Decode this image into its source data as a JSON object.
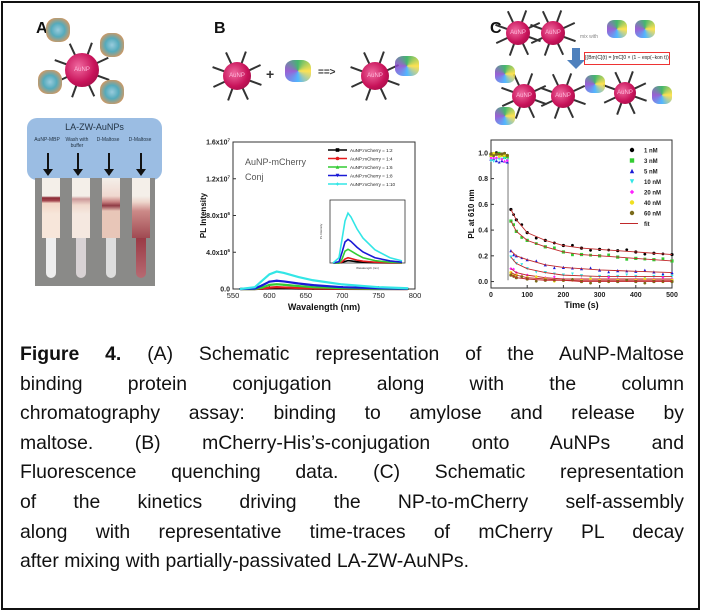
{
  "panels": {
    "a": {
      "letter": "A",
      "np_label": "AuNP",
      "box_title": "LA-ZW-AuNPs",
      "columns": [
        "AuNP-MBP",
        "Wash with buffer",
        "D-Maltose",
        "D-Maltose"
      ]
    },
    "b": {
      "letter": "B",
      "np_label": "AuNP",
      "plus": "+",
      "arrow": "==>",
      "annotation_line1": "AuNP-mCherry",
      "annotation_line2": "Conj"
    },
    "c": {
      "letter": "C",
      "np_label": "AuNP",
      "mix_text": "mix with",
      "formula": "[(Bm)C](t) = [mC]0 × (1 − exp(−kon t))"
    }
  },
  "chart_data": [
    {
      "type": "line",
      "title": "",
      "xlabel": "Wavalength (nm)",
      "ylabel": "PL Intensity",
      "xlim": [
        550,
        800
      ],
      "ylim": [
        0,
        16000000
      ],
      "xticks": [
        "550",
        "600",
        "650",
        "700",
        "750",
        "800"
      ],
      "yticks": [
        "0.0",
        "4.0x10^6",
        "8.0x10^6",
        "1.2x10^7",
        "1.6x10^7"
      ],
      "legend_position": "top-right",
      "x": [
        560,
        580,
        590,
        600,
        610,
        620,
        640,
        660,
        700,
        750,
        790
      ],
      "series": [
        {
          "name": "AuNP:mCherry = 1:2",
          "color": "#000000",
          "marker": "square",
          "values": [
            0,
            0,
            20000,
            60000,
            90000,
            80000,
            50000,
            30000,
            10000,
            0,
            0
          ]
        },
        {
          "name": "AuNP:mCherry = 1:4",
          "color": "#e41a1c",
          "marker": "circle",
          "values": [
            0,
            0,
            40000,
            150000,
            200000,
            170000,
            110000,
            70000,
            30000,
            10000,
            0
          ]
        },
        {
          "name": "AuNP:mCherry = 1:6",
          "color": "#33cc33",
          "marker": "triangle-up",
          "values": [
            0,
            0,
            150000,
            450000,
            520000,
            460000,
            320000,
            200000,
            90000,
            30000,
            10000
          ]
        },
        {
          "name": "AuNP:mCherry = 1:8",
          "color": "#1a1ad6",
          "marker": "triangle-down",
          "values": [
            0,
            50000,
            400000,
            800000,
            900000,
            820000,
            600000,
            420000,
            200000,
            80000,
            30000
          ]
        },
        {
          "name": "AuNP:mCherry = 1:10",
          "color": "#33e6e6",
          "marker": "diamond",
          "values": [
            0,
            200000,
            900000,
            1600000,
            1900000,
            1750000,
            1300000,
            950000,
            500000,
            200000,
            80000
          ]
        }
      ],
      "inset": {
        "xlim": [
          550,
          800
        ],
        "ylim": [
          0,
          2400000
        ]
      }
    },
    {
      "type": "scatter",
      "title": "",
      "xlabel": "Time (s)",
      "ylabel": "PL at 610 nm",
      "xlim": [
        0,
        500
      ],
      "ylim": [
        -0.05,
        1.1
      ],
      "xticks": [
        "0",
        "100",
        "200",
        "300",
        "400",
        "500"
      ],
      "yticks": [
        "0.0",
        "0.2",
        "0.4",
        "0.6",
        "0.8",
        "1.0"
      ],
      "legend_position": "top-right",
      "x": [
        0,
        15,
        30,
        45,
        55,
        70,
        100,
        150,
        200,
        250,
        300,
        350,
        400,
        450,
        500
      ],
      "series": [
        {
          "name": "1 nM",
          "color": "#000000",
          "values": [
            0.99,
            1.0,
            0.99,
            0.98,
            0.56,
            0.48,
            0.38,
            0.32,
            0.28,
            0.26,
            0.25,
            0.24,
            0.23,
            0.22,
            0.21
          ]
        },
        {
          "name": "3 nM",
          "color": "#33cc33",
          "values": [
            0.98,
            0.99,
            0.98,
            0.97,
            0.47,
            0.39,
            0.32,
            0.27,
            0.23,
            0.21,
            0.2,
            0.19,
            0.18,
            0.17,
            0.16
          ]
        },
        {
          "name": "5 nM",
          "color": "#1a1ad6",
          "values": [
            0.95,
            0.94,
            0.94,
            0.93,
            0.24,
            0.2,
            0.17,
            0.13,
            0.11,
            0.1,
            0.09,
            0.085,
            0.08,
            0.075,
            0.07
          ]
        },
        {
          "name": "10 nM",
          "color": "#33e6e6",
          "values": [
            0.94,
            0.95,
            0.95,
            0.94,
            0.19,
            0.14,
            0.1,
            0.07,
            0.05,
            0.045,
            0.04,
            0.04,
            0.04,
            0.04,
            0.04
          ]
        },
        {
          "name": "20 nM",
          "color": "#ff22ff",
          "values": [
            0.96,
            0.96,
            0.95,
            0.94,
            0.1,
            0.07,
            0.05,
            0.03,
            0.02,
            0.02,
            0.02,
            0.02,
            0.02,
            0.02,
            0.02
          ]
        },
        {
          "name": "40 nM",
          "color": "#f0e020",
          "values": [
            0.98,
            0.99,
            0.98,
            0.98,
            0.07,
            0.05,
            0.03,
            0.02,
            0.01,
            0.01,
            0.01,
            0.01,
            0.01,
            0.01,
            0.01
          ]
        },
        {
          "name": "60 nM",
          "color": "#7a6a1a",
          "values": [
            0.99,
            0.99,
            0.99,
            0.98,
            0.05,
            0.03,
            0.02,
            0.01,
            0.01,
            0.0,
            0.0,
            0.0,
            0.0,
            0.0,
            0.0
          ]
        }
      ],
      "fit": {
        "name": "fit",
        "color": "#c0282a"
      }
    }
  ],
  "caption": {
    "label": "Figure 4.",
    "lines": [
      " (A) Schematic representation of the AuNP-Maltose",
      "binding protein conjugation along with the column",
      "chromatography assay: binding to amylose and release by",
      "maltose. (B) mCherry-His’s-conjugation onto AuNPs and",
      "Fluorescence quenching data. (C) Schematic representation",
      "of the kinetics driving the NP-to-mCherry self-assembly",
      "along with representative time-traces of mCherry PL decay",
      "after mixing with partially-passivated LA-ZW-AuNPs."
    ]
  }
}
